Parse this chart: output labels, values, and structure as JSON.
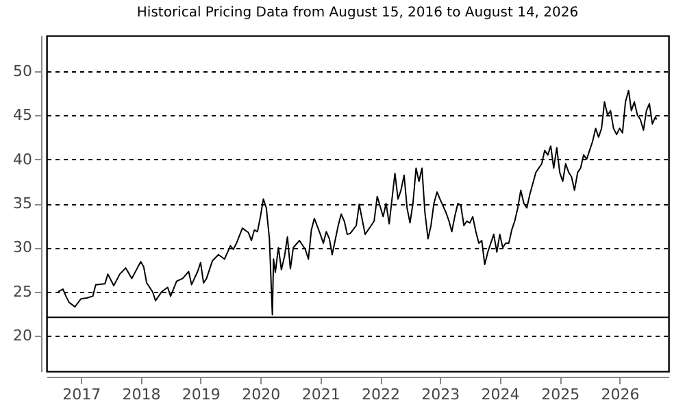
{
  "chart_data": {
    "type": "line",
    "title": "Historical Pricing Data from August 15, 2016 to August 14, 2026",
    "x": [
      "2016-08-15",
      "2016-09-13",
      "2016-10-01",
      "2016-10-20",
      "2016-11-25",
      "2017-01-01",
      "2017-02-06",
      "2017-03-14",
      "2017-04-01",
      "2017-05-27",
      "2017-06-14",
      "2017-07-20",
      "2017-08-26",
      "2017-10-01",
      "2017-11-07",
      "2017-12-14",
      "2018-01-01",
      "2018-01-19",
      "2018-02-06",
      "2018-03-14",
      "2018-04-01",
      "2018-05-08",
      "2018-06-14",
      "2018-07-02",
      "2018-08-08",
      "2018-09-13",
      "2018-10-20",
      "2018-11-07",
      "2018-12-14",
      "2019-01-01",
      "2019-01-19",
      "2019-02-06",
      "2019-03-14",
      "2019-04-20",
      "2019-05-27",
      "2019-07-02",
      "2019-07-20",
      "2019-08-08",
      "2019-09-13",
      "2019-10-20",
      "2019-11-07",
      "2019-11-25",
      "2019-12-14",
      "2020-01-01",
      "2020-01-19",
      "2020-02-06",
      "2020-02-25",
      "2020-03-14",
      "2020-03-21",
      "2020-04-01",
      "2020-04-20",
      "2020-05-08",
      "2020-05-27",
      "2020-06-14",
      "2020-07-02",
      "2020-07-20",
      "2020-08-26",
      "2020-10-01",
      "2020-10-20",
      "2020-11-07",
      "2020-11-25",
      "2021-01-01",
      "2021-01-19",
      "2021-02-06",
      "2021-02-25",
      "2021-03-14",
      "2021-04-20",
      "2021-05-08",
      "2021-05-27",
      "2021-06-14",
      "2021-07-02",
      "2021-08-08",
      "2021-08-26",
      "2021-10-01",
      "2021-11-07",
      "2021-11-25",
      "2021-12-14",
      "2022-01-19",
      "2022-02-06",
      "2022-02-25",
      "2022-04-01",
      "2022-04-20",
      "2022-05-08",
      "2022-05-27",
      "2022-06-14",
      "2022-07-02",
      "2022-07-20",
      "2022-08-08",
      "2022-08-26",
      "2022-09-13",
      "2022-10-01",
      "2022-10-20",
      "2022-11-07",
      "2022-11-25",
      "2022-12-14",
      "2023-01-01",
      "2023-02-06",
      "2023-02-25",
      "2023-03-14",
      "2023-04-01",
      "2023-04-20",
      "2023-05-08",
      "2023-05-27",
      "2023-06-14",
      "2023-07-02",
      "2023-07-20",
      "2023-08-08",
      "2023-08-26",
      "2023-09-13",
      "2023-10-01",
      "2023-10-20",
      "2023-11-07",
      "2023-11-25",
      "2023-12-14",
      "2024-01-01",
      "2024-01-19",
      "2024-02-06",
      "2024-02-25",
      "2024-03-14",
      "2024-04-01",
      "2024-04-20",
      "2024-05-08",
      "2024-05-27",
      "2024-06-14",
      "2024-07-02",
      "2024-08-08",
      "2024-09-13",
      "2024-10-01",
      "2024-10-20",
      "2024-11-07",
      "2024-11-25",
      "2024-12-14",
      "2025-01-01",
      "2025-01-19",
      "2025-02-06",
      "2025-02-25",
      "2025-03-14",
      "2025-04-01",
      "2025-04-20",
      "2025-05-08",
      "2025-05-27",
      "2025-06-14",
      "2025-07-02",
      "2025-07-20",
      "2025-08-08",
      "2025-08-26",
      "2025-09-13",
      "2025-10-01",
      "2025-10-20",
      "2025-11-07",
      "2025-11-25",
      "2025-12-14",
      "2026-01-01",
      "2026-01-19",
      "2026-02-06",
      "2026-02-25",
      "2026-03-14",
      "2026-04-01",
      "2026-04-20",
      "2026-05-08",
      "2026-05-27",
      "2026-06-14",
      "2026-07-02",
      "2026-07-20",
      "2026-08-08",
      "2026-08-14"
    ],
    "values": [
      25,
      25.3,
      24.5,
      23.8,
      23.3,
      24.2,
      24.3,
      24.5,
      25.8,
      25.9,
      27,
      25.7,
      27,
      27.7,
      26.5,
      27.8,
      28.4,
      27.8,
      26,
      25,
      24,
      25,
      25.5,
      24.5,
      26.2,
      26.5,
      27.3,
      25.8,
      27.3,
      28.3,
      26,
      26.5,
      28.5,
      29.2,
      28.7,
      30.2,
      29.8,
      30.5,
      32.2,
      31.7,
      30.8,
      32,
      31.8,
      33.5,
      35.5,
      34.5,
      31,
      22.4,
      28.7,
      27.2,
      30,
      27.5,
      29,
      31.2,
      27.6,
      30,
      30.8,
      29.8,
      28.7,
      32,
      33.3,
      31.5,
      30.5,
      31.8,
      31,
      29.2,
      32.5,
      33.8,
      33,
      31.5,
      31.6,
      32.5,
      34.9,
      31.5,
      32.5,
      33,
      35.8,
      33.5,
      35,
      32.7,
      38.4,
      35.5,
      36.5,
      38.2,
      34.5,
      32.8,
      35,
      39,
      37.5,
      39,
      34,
      31,
      32.5,
      35,
      36.3,
      35.5,
      34,
      33,
      31.8,
      33.5,
      35,
      34.8,
      32.5,
      33,
      32.8,
      33.5,
      31.8,
      30.5,
      30.8,
      28.1,
      29.5,
      30.5,
      31.5,
      29.5,
      31.5,
      30,
      30.5,
      30.5,
      32,
      33,
      34.5,
      36.5,
      35,
      34.5,
      36,
      38.5,
      39.5,
      41,
      40.5,
      41.5,
      39,
      41.3,
      38.5,
      37.5,
      39.5,
      38.5,
      38,
      36.5,
      38.5,
      39,
      40.5,
      40,
      41,
      42,
      43.5,
      42.5,
      43.5,
      46.5,
      45,
      45.5,
      43.5,
      42.8,
      43.5,
      43,
      46.5,
      47.8,
      45.5,
      46.5,
      45,
      44.5,
      43.3,
      45.5,
      46.3,
      44,
      44.8,
      44.5
    ],
    "color": "#000000",
    "xlim": [
      "2016-06-05",
      "2026-10-27"
    ],
    "xticks": [
      {
        "value": "2017-01-01",
        "label": "2017"
      },
      {
        "value": "2018-01-01",
        "label": "2018"
      },
      {
        "value": "2019-01-01",
        "label": "2019"
      },
      {
        "value": "2020-01-01",
        "label": "2020"
      },
      {
        "value": "2021-01-01",
        "label": "2021"
      },
      {
        "value": "2022-01-01",
        "label": "2022"
      },
      {
        "value": "2023-01-01",
        "label": "2023"
      },
      {
        "value": "2024-01-01",
        "label": "2024"
      },
      {
        "value": "2025-01-01",
        "label": "2025"
      },
      {
        "value": "2026-01-01",
        "label": "2026"
      }
    ],
    "ylim": [
      16,
      54
    ],
    "yticks": [
      20,
      25,
      30,
      35,
      40,
      45,
      50
    ],
    "grid": "y",
    "ref_lines": [
      {
        "axis": "y",
        "value": 22.1,
        "color": "#000000",
        "line_style": "solid"
      }
    ]
  }
}
